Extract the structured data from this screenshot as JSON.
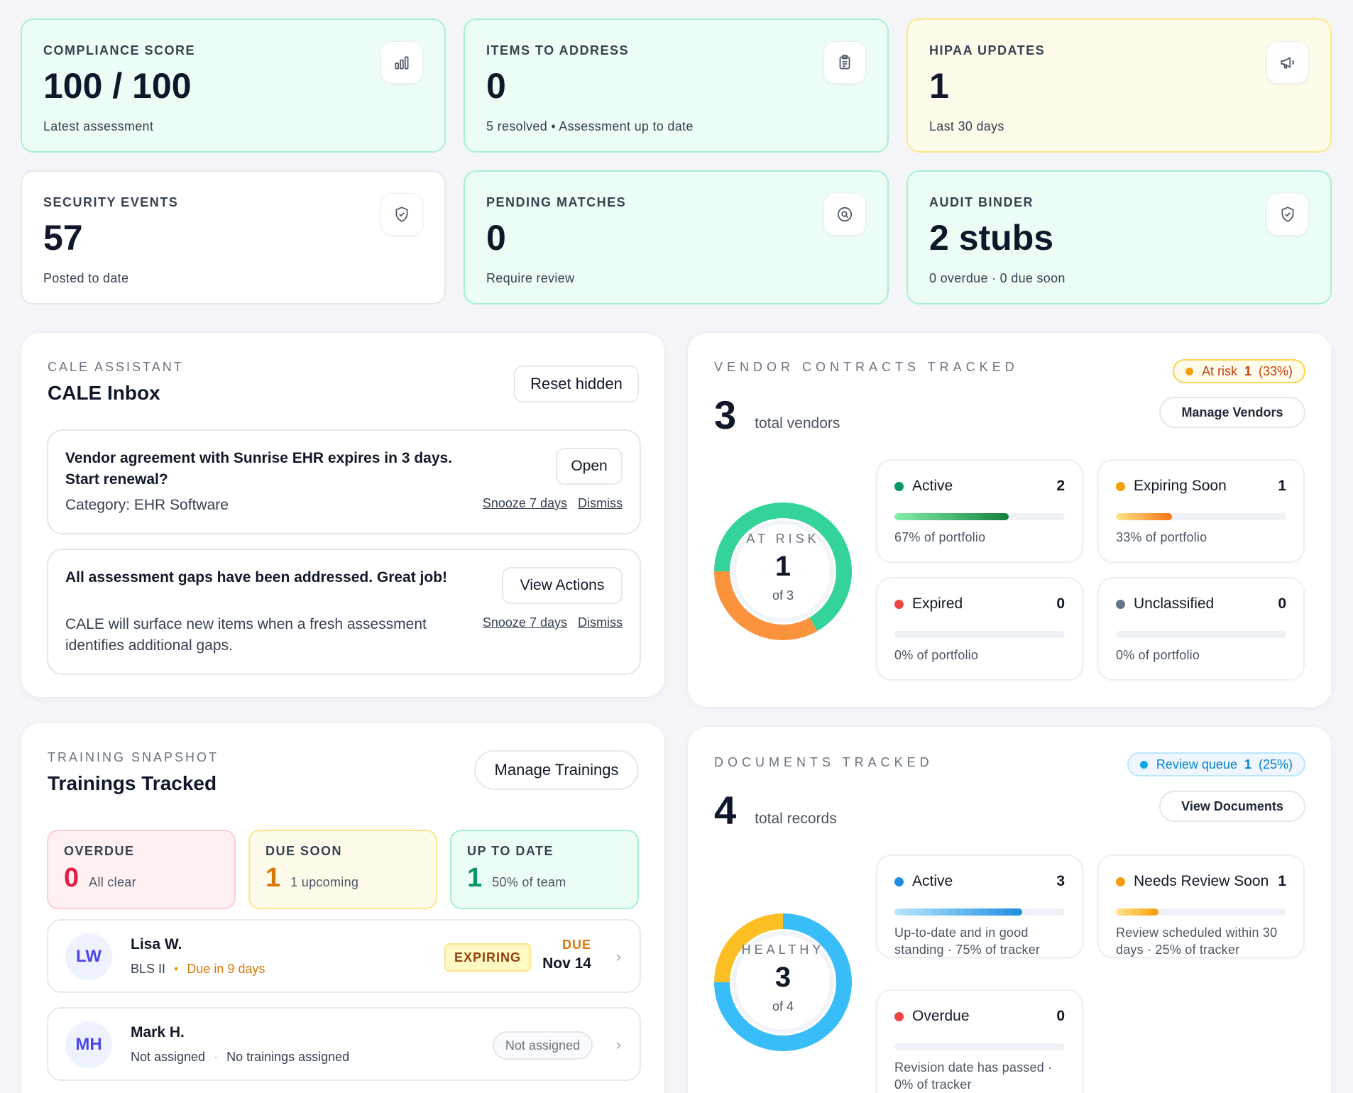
{
  "stats": [
    {
      "label": "COMPLIANCE SCORE",
      "value": "100 / 100",
      "sub": "Latest assessment",
      "icon": "bar-chart-icon"
    },
    {
      "label": "ITEMS TO ADDRESS",
      "value": "0",
      "sub": "5 resolved • Assessment up to date",
      "icon": "clipboard-icon"
    },
    {
      "label": "HIPAA UPDATES",
      "value": "1",
      "sub": "Last 30 days",
      "icon": "megaphone-icon"
    },
    {
      "label": "SECURITY EVENTS",
      "value": "57",
      "sub": "Posted to date",
      "icon": "shield-icon"
    },
    {
      "label": "PENDING MATCHES",
      "value": "0",
      "sub": "Require review",
      "icon": "search-icon"
    },
    {
      "label": "AUDIT BINDER",
      "value": "2 stubs",
      "sub": "0 overdue · 0 due soon",
      "icon": "shield-check-icon"
    }
  ],
  "inbox": {
    "eyebrow": "CALE ASSISTANT",
    "title": "CALE Inbox",
    "reset_label": "Reset hidden",
    "items": [
      {
        "title": "Vendor agreement with Sunrise EHR expires in 3 days. Start renewal?",
        "desc": "Category: EHR Software",
        "action": "Open",
        "snooze": "Snooze 7 days",
        "dismiss": "Dismiss"
      },
      {
        "title": "All assessment gaps have been addressed. Great job!",
        "desc": "CALE will surface new items when a fresh assessment identifies additional gaps.",
        "action": "View Actions",
        "snooze": "Snooze 7 days",
        "dismiss": "Dismiss"
      }
    ]
  },
  "vendors": {
    "eyebrow": "VENDOR CONTRACTS TRACKED",
    "badge_label": "At risk",
    "badge_count": "1",
    "badge_pct": "(33%)",
    "manage_label": "Manage Vendors",
    "total": "3",
    "total_label": "total vendors",
    "donut_label": "AT RISK",
    "donut_value": "1",
    "donut_of": "of 3",
    "donut_segments": [
      {
        "name": "Active",
        "value": 2,
        "color": "#34d399"
      },
      {
        "name": "Expiring Soon",
        "value": 1,
        "color": "#fb923c"
      }
    ],
    "cards": [
      {
        "name": "Active",
        "count": "2",
        "sub": "67% of portfolio",
        "pct": 67,
        "color": "#059669"
      },
      {
        "name": "Expiring Soon",
        "count": "1",
        "sub": "33% of portfolio",
        "pct": 33,
        "color": "#f59e0b"
      },
      {
        "name": "Expired",
        "count": "0",
        "sub": "0% of portfolio",
        "pct": 0,
        "color": "#ef4444"
      },
      {
        "name": "Unclassified",
        "count": "0",
        "sub": "0% of portfolio",
        "pct": 0,
        "color": "#64748b"
      }
    ]
  },
  "documents": {
    "eyebrow": "DOCUMENTS TRACKED",
    "badge_label": "Review queue",
    "badge_count": "1",
    "badge_pct": "(25%)",
    "view_label": "View Documents",
    "total": "4",
    "total_label": "total records",
    "donut_label": "HEALTHY",
    "donut_value": "3",
    "donut_of": "of 4",
    "donut_segments": [
      {
        "name": "Active",
        "value": 3,
        "color": "#38bdf8"
      },
      {
        "name": "Needs Review Soon",
        "value": 1,
        "color": "#fbbf24"
      }
    ],
    "cards": [
      {
        "name": "Active",
        "count": "3",
        "sub": "Up-to-date and in good standing · 75% of tracker",
        "pct": 75,
        "color": "#1d8fe1"
      },
      {
        "name": "Needs Review Soon",
        "count": "1",
        "sub": "Review scheduled within 30 days · 25% of tracker",
        "pct": 25,
        "color": "#f59e0b"
      },
      {
        "name": "Overdue",
        "count": "0",
        "sub": "Revision date has passed · 0% of tracker",
        "pct": 0,
        "color": "#ef4444"
      }
    ]
  },
  "training": {
    "eyebrow": "TRAINING SNAPSHOT",
    "title": "Trainings Tracked",
    "manage_label": "Manage Trainings",
    "cards": [
      {
        "label": "OVERDUE",
        "num": "0",
        "sub": "All clear"
      },
      {
        "label": "DUE SOON",
        "num": "1",
        "sub": "1 upcoming"
      },
      {
        "label": "UP TO DATE",
        "num": "1",
        "sub": "50% of team"
      }
    ],
    "people": [
      {
        "initials": "LW",
        "name": "Lisa W.",
        "course": "BLS II",
        "status": "Due in 9 days",
        "badge": "EXPIRING",
        "due_label": "DUE",
        "due_date": "Nov 14"
      },
      {
        "initials": "MH",
        "name": "Mark H.",
        "course": "Not assigned",
        "status": "No trainings assigned",
        "badge": "Not assigned"
      }
    ]
  }
}
